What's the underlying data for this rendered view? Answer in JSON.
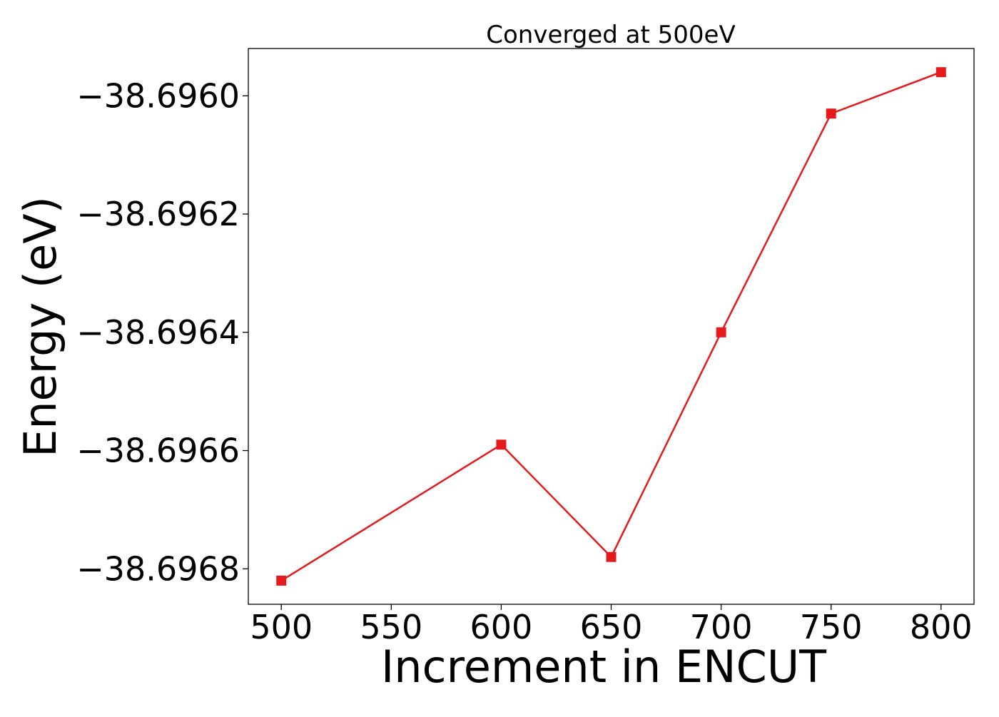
{
  "chart_data": {
    "type": "line",
    "title": "Converged at 500eV",
    "xlabel": "Increment in ENCUT",
    "ylabel": "Energy (eV)",
    "xlim": [
      485,
      815
    ],
    "ylim": [
      -38.69686,
      -38.69592
    ],
    "x_ticks": [
      500,
      550,
      600,
      650,
      700,
      750,
      800
    ],
    "x_tick_labels": [
      "500",
      "550",
      "600",
      "650",
      "700",
      "750",
      "800"
    ],
    "y_ticks": [
      -38.6968,
      -38.6966,
      -38.6964,
      -38.6962,
      -38.696
    ],
    "y_tick_labels": [
      "−38.6968",
      "−38.6966",
      "−38.6964",
      "−38.6962",
      "−38.6960"
    ],
    "grid": false,
    "legend": "none",
    "marker": "square",
    "color": "#e41a1c",
    "series": [
      {
        "x": [
          500,
          600,
          650,
          700,
          750,
          800
        ],
        "y": [
          -38.69682,
          -38.69659,
          -38.69678,
          -38.6964,
          -38.69603,
          -38.69596
        ]
      }
    ]
  }
}
